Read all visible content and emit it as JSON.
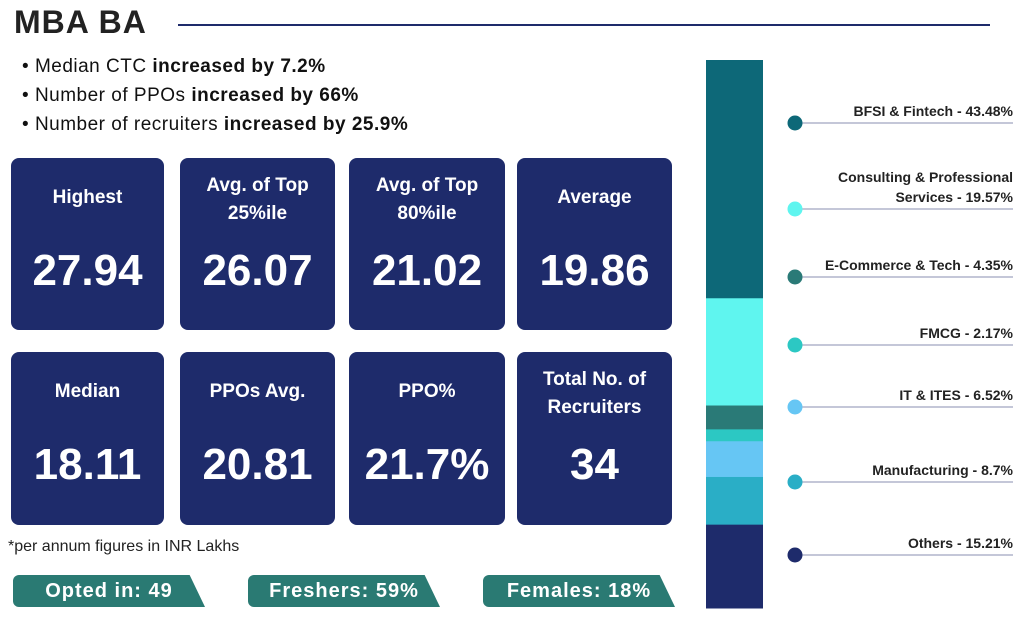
{
  "header": {
    "title": "MBA BA"
  },
  "bullets": [
    {
      "text": "Median CTC",
      "bold": "increased by 7.2%"
    },
    {
      "text": "Number of PPOs",
      "bold": "increased by 66%"
    },
    {
      "text": "Number of recruiters",
      "bold": "increased by 25.9%"
    }
  ],
  "cards": [
    {
      "label": [
        "Highest"
      ],
      "value": "27.94"
    },
    {
      "label": [
        "Avg. of Top",
        "25%ile"
      ],
      "value": "26.07"
    },
    {
      "label": [
        "Avg. of Top",
        "80%ile"
      ],
      "value": "21.02"
    },
    {
      "label": [
        "Average"
      ],
      "value": "19.86"
    },
    {
      "label": [
        "Median"
      ],
      "value": "18.11"
    },
    {
      "label": [
        "PPOs Avg."
      ],
      "value": "20.81"
    },
    {
      "label": [
        "PPO%"
      ],
      "value": "21.7%"
    },
    {
      "label": [
        "Total No. of",
        "Recruiters"
      ],
      "value": "34"
    }
  ],
  "footnote": "*per annum figures in INR Lakhs",
  "pills": [
    "Opted in: 49",
    "Freshers: 59%",
    "Females: 18%"
  ],
  "segments": [
    {
      "label": [
        "BFSI & Fintech - 43.48%"
      ],
      "value": 43.48,
      "color": "#0d6878"
    },
    {
      "label": [
        "Consulting & Professional",
        "Services - 19.57%"
      ],
      "value": 19.57,
      "color": "#5ff5ef"
    },
    {
      "label": [
        "E-Commerce & Tech - 4.35%"
      ],
      "value": 4.35,
      "color": "#2a7a77"
    },
    {
      "label": [
        "FMCG - 2.17%"
      ],
      "value": 2.17,
      "color": "#2cc8c3"
    },
    {
      "label": [
        "IT & ITES - 6.52%"
      ],
      "value": 6.52,
      "color": "#66c6f4"
    },
    {
      "label": [
        "Manufacturing - 8.7%"
      ],
      "value": 8.7,
      "color": "#2aaec6"
    },
    {
      "label": [
        "Others - 15.21%"
      ],
      "value": 15.21,
      "color": "#1e2b6b"
    }
  ]
}
